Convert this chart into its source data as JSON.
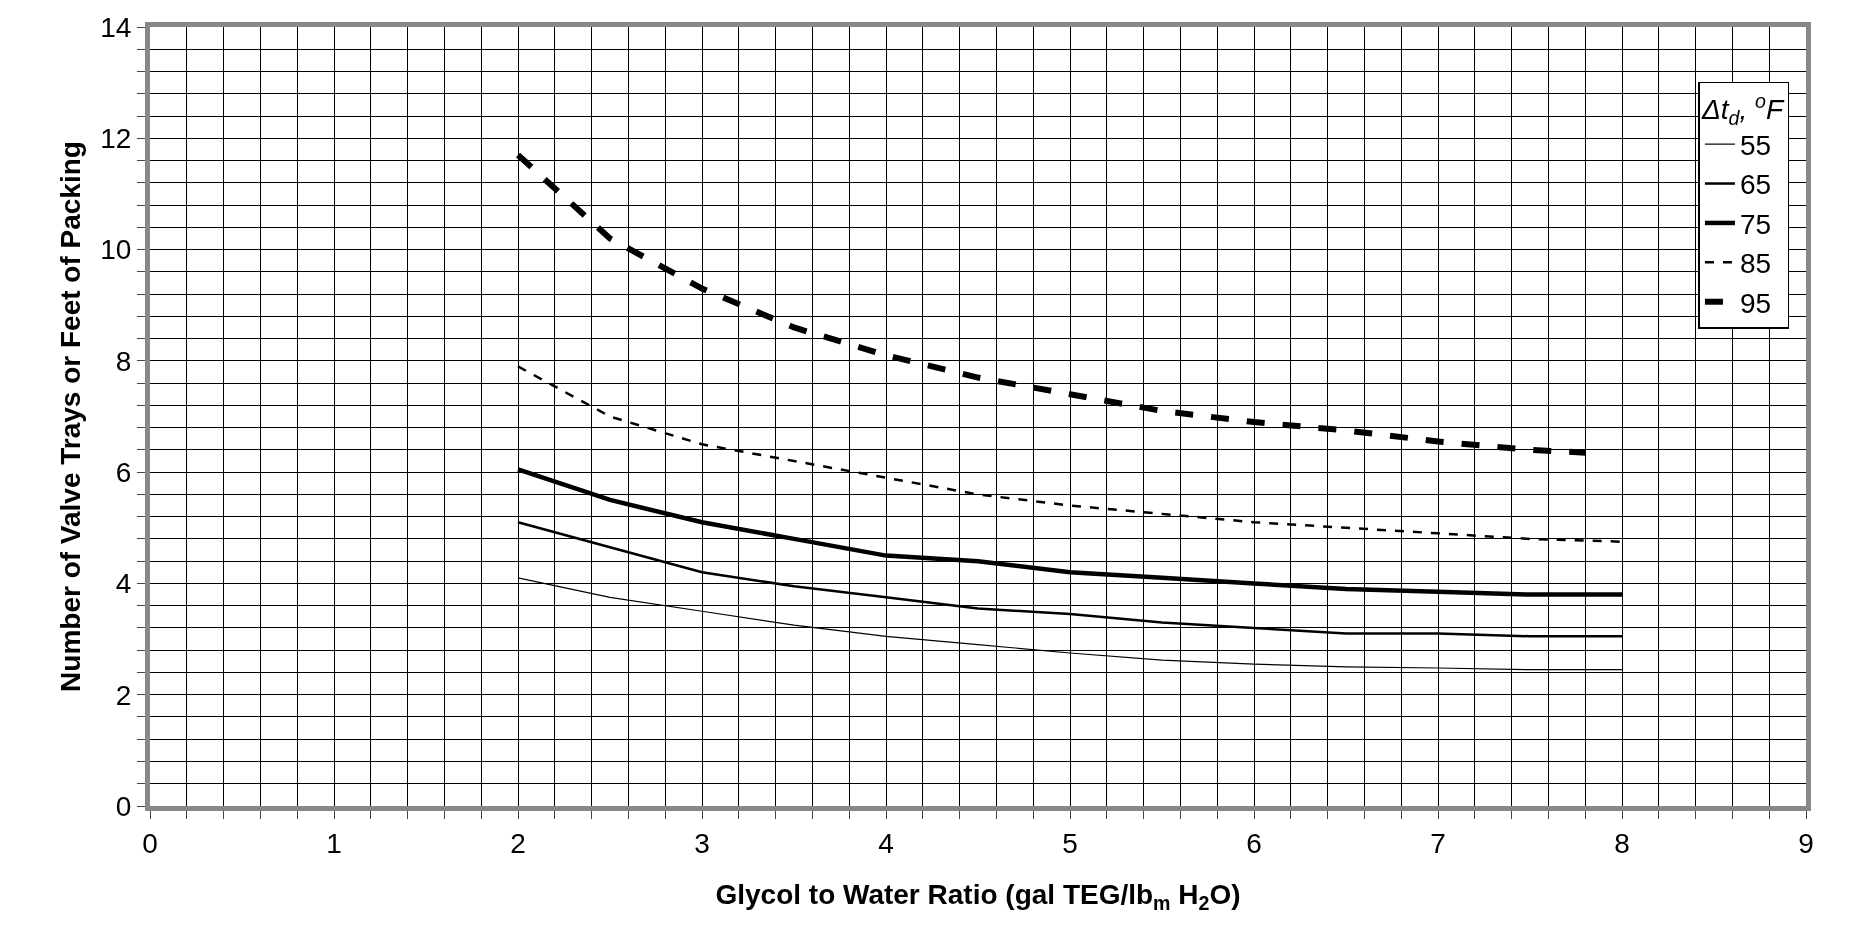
{
  "chart_data": {
    "type": "line",
    "xlabel": "Glycol to Water Ratio (gal TEG/lb$_{m}$ H$_{2}$O)",
    "ylabel": "Number of Valve Trays or Feet of Packing",
    "legend_title": "Δt$_{d}$, $^{o}$F",
    "legend": "top right",
    "grid": true,
    "marker": "none",
    "xlim": [
      0,
      9
    ],
    "ylim": [
      0,
      14
    ],
    "xticks": [
      0,
      {
        "value": 0.2,
        "label": null
      },
      {
        "value": 0.4,
        "label": null
      },
      {
        "value": 0.6,
        "label": null
      },
      {
        "value": 0.8,
        "label": null
      },
      1,
      {
        "value": 1.2,
        "label": null
      },
      {
        "value": 1.4,
        "label": null
      },
      {
        "value": 1.6,
        "label": null
      },
      {
        "value": 1.8,
        "label": null
      },
      2,
      {
        "value": 2.2,
        "label": null
      },
      {
        "value": 2.4,
        "label": null
      },
      {
        "value": 2.6,
        "label": null
      },
      {
        "value": 2.8,
        "label": null
      },
      3,
      {
        "value": 3.2,
        "label": null
      },
      {
        "value": 3.4,
        "label": null
      },
      {
        "value": 3.6,
        "label": null
      },
      {
        "value": 3.8,
        "label": null
      },
      4,
      {
        "value": 4.2,
        "label": null
      },
      {
        "value": 4.4,
        "label": null
      },
      {
        "value": 4.6,
        "label": null
      },
      {
        "value": 4.8,
        "label": null
      },
      5,
      {
        "value": 5.2,
        "label": null
      },
      {
        "value": 5.4,
        "label": null
      },
      {
        "value": 5.6,
        "label": null
      },
      {
        "value": 5.8,
        "label": null
      },
      6,
      {
        "value": 6.2,
        "label": null
      },
      {
        "value": 6.4,
        "label": null
      },
      {
        "value": 6.6,
        "label": null
      },
      {
        "value": 6.8,
        "label": null
      },
      7,
      {
        "value": 7.2,
        "label": null
      },
      {
        "value": 7.4,
        "label": null
      },
      {
        "value": 7.6,
        "label": null
      },
      {
        "value": 7.8,
        "label": null
      },
      8,
      {
        "value": 8.2,
        "label": null
      },
      {
        "value": 8.4,
        "label": null
      },
      {
        "value": 8.6,
        "label": null
      },
      {
        "value": 8.8,
        "label": null
      },
      9
    ],
    "yticks": [
      0,
      {
        "value": 0.4,
        "label": null
      },
      {
        "value": 0.8,
        "label": null
      },
      {
        "value": 1.2,
        "label": null
      },
      {
        "value": 1.6,
        "label": null
      },
      2,
      {
        "value": 2.4,
        "label": null
      },
      {
        "value": 2.8,
        "label": null
      },
      {
        "value": 3.2,
        "label": null
      },
      {
        "value": 3.6,
        "label": null
      },
      4,
      {
        "value": 4.4,
        "label": null
      },
      {
        "value": 4.8,
        "label": null
      },
      {
        "value": 5.2,
        "label": null
      },
      {
        "value": 5.6,
        "label": null
      },
      6,
      {
        "value": 6.4,
        "label": null
      },
      {
        "value": 6.8,
        "label": null
      },
      {
        "value": 7.2,
        "label": null
      },
      {
        "value": 7.6,
        "label": null
      },
      8,
      {
        "value": 8.4,
        "label": null
      },
      {
        "value": 8.8,
        "label": null
      },
      {
        "value": 9.2,
        "label": null
      },
      {
        "value": 9.6,
        "label": null
      },
      10,
      {
        "value": 10.4,
        "label": null
      },
      {
        "value": 10.8,
        "label": null
      },
      {
        "value": 11.2,
        "label": null
      },
      {
        "value": 11.6,
        "label": null
      },
      12,
      {
        "value": 12.4,
        "label": null
      },
      {
        "value": 12.8,
        "label": null
      },
      {
        "value": 13.2,
        "label": null
      },
      {
        "value": 13.6,
        "label": null
      },
      14
    ],
    "x": [
      2,
      2.5,
      3,
      3.5,
      4,
      4.5,
      5,
      5.5,
      6,
      6.5,
      7,
      7.5,
      8
    ],
    "series": [
      {
        "name": "55",
        "color": "#000000",
        "line_style": "solid",
        "values": [
          4.1,
          3.75,
          3.5,
          3.25,
          3.05,
          2.9,
          2.75,
          2.62,
          2.55,
          2.5,
          2.48,
          2.45,
          2.45
        ]
      },
      {
        "name": "65",
        "color": "#000000",
        "line_style": "solid",
        "values": [
          5.1,
          4.65,
          4.2,
          3.95,
          3.75,
          3.55,
          3.45,
          3.3,
          3.2,
          3.1,
          3.1,
          3.05,
          3.05
        ]
      },
      {
        "name": "75",
        "color": "#000000",
        "line_style": "solid",
        "values": [
          6.05,
          5.5,
          5.1,
          4.8,
          4.5,
          4.4,
          4.2,
          4.1,
          4.0,
          3.9,
          3.85,
          3.8,
          3.8
        ]
      },
      {
        "name": "85",
        "color": "#000000",
        "line_style": "dashed",
        "values": [
          7.9,
          7.0,
          6.5,
          6.2,
          5.9,
          5.6,
          5.4,
          5.25,
          5.1,
          5.0,
          4.9,
          4.8,
          4.75
        ]
      },
      {
        "name": "95",
        "color": "#000000",
        "line_style": "dashed",
        "x": [
          2,
          2.5,
          3,
          3.5,
          4,
          4.5,
          5,
          5.5,
          6,
          6.5,
          7,
          7.5,
          7.8
        ],
        "values": [
          11.7,
          10.2,
          9.3,
          8.6,
          8.1,
          7.7,
          7.4,
          7.1,
          6.9,
          6.75,
          6.55,
          6.4,
          6.35
        ]
      }
    ]
  }
}
